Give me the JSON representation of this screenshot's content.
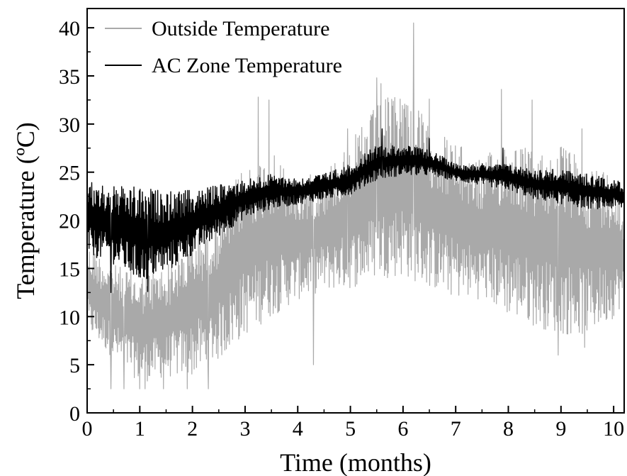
{
  "chart_data": {
    "type": "line",
    "title": "",
    "xlabel": "Time (months)",
    "ylabel": "Temperature (ºC)",
    "xlim": [
      0,
      10.2
    ],
    "ylim": [
      0,
      42
    ],
    "x_ticks": [
      "0",
      "1",
      "2",
      "3",
      "4",
      "5",
      "6",
      "7",
      "8",
      "9",
      "10"
    ],
    "y_ticks": [
      "0",
      "5",
      "10",
      "15",
      "20",
      "25",
      "30",
      "35",
      "40"
    ],
    "grid": false,
    "legend_position": "top-left",
    "series": [
      {
        "name": "Outside Temperature",
        "color": "#a9a9a9",
        "x": [
          0,
          0.5,
          1,
          1.5,
          2,
          2.5,
          3,
          3.5,
          4,
          4.5,
          5,
          5.5,
          6,
          6.5,
          7,
          7.5,
          8,
          8.5,
          9,
          9.5,
          10,
          10.2
        ],
        "min": [
          8,
          5,
          2.5,
          3,
          3,
          4.5,
          7,
          9,
          11,
          12,
          12,
          13,
          13,
          12,
          11,
          11,
          9,
          8,
          7,
          7,
          9,
          11
        ],
        "max": [
          18,
          16,
          15,
          16,
          19,
          22,
          27,
          28,
          25,
          26,
          29,
          33,
          35,
          31,
          29,
          27,
          30,
          28,
          29,
          27,
          26,
          21
        ],
        "peaks": [
          [
            3.25,
            32.8
          ],
          [
            3.45,
            32.5
          ],
          [
            4.95,
            29.5
          ],
          [
            5.5,
            34.8
          ],
          [
            5.58,
            34.2
          ],
          [
            6.2,
            40.5
          ],
          [
            6.5,
            32.6
          ],
          [
            7.87,
            33.6
          ],
          [
            8.45,
            32.5
          ],
          [
            8.95,
            32.2
          ],
          [
            9.4,
            29.5
          ],
          [
            10.08,
            23
          ]
        ],
        "lows": [
          [
            0.45,
            2.5
          ],
          [
            0.7,
            2.5
          ],
          [
            1.0,
            2.5
          ],
          [
            1.1,
            2.5
          ],
          [
            1.45,
            2.5
          ],
          [
            1.9,
            2.5
          ],
          [
            2.3,
            2.5
          ],
          [
            4.3,
            5
          ],
          [
            8.95,
            6
          ],
          [
            9.45,
            6.8
          ]
        ]
      },
      {
        "name": "AC Zone Temperature",
        "color": "#000000",
        "x": [
          0,
          0.5,
          1,
          1.5,
          2,
          2.5,
          3,
          3.5,
          4,
          4.5,
          5,
          5.5,
          6,
          6.5,
          7,
          7.5,
          8,
          8.5,
          9,
          9.5,
          10,
          10.2
        ],
        "min": [
          16,
          15,
          13,
          14,
          16,
          18,
          20,
          21,
          21.5,
          22,
          22.5,
          24,
          24.5,
          24.5,
          24,
          23.5,
          23,
          22,
          21.5,
          21,
          21,
          21
        ],
        "max": [
          24.5,
          24,
          24,
          23.5,
          23.5,
          24,
          24.5,
          25,
          24.5,
          25,
          26,
          28,
          28,
          27.5,
          26,
          26,
          26,
          25.5,
          25.5,
          25,
          24.5,
          24
        ],
        "peaks": [
          [
            5.6,
            29.5
          ],
          [
            6.5,
            28.5
          ],
          [
            7.9,
            27.5
          ]
        ],
        "lows": [
          [
            0.45,
            12.5
          ],
          [
            1.15,
            12.6
          ]
        ]
      }
    ]
  }
}
